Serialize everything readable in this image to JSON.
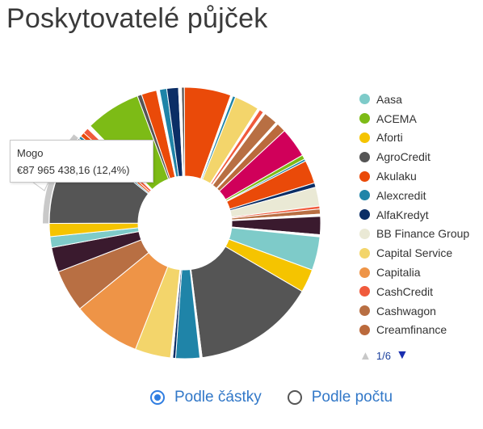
{
  "page": {
    "title": "Poskytovatelé půjček"
  },
  "tooltip": {
    "name": "Mogo",
    "value_text": "€87 965 438,16 (12,4%)"
  },
  "legend": {
    "items": [
      {
        "label": "Aasa",
        "color": "#7ecbc9"
      },
      {
        "label": "ACEMA",
        "color": "#7dbb16"
      },
      {
        "label": "Aforti",
        "color": "#f5c400"
      },
      {
        "label": "AgroCredit",
        "color": "#555555"
      },
      {
        "label": "Akulaku",
        "color": "#ea4a09"
      },
      {
        "label": "Alexcredit",
        "color": "#1f84a8"
      },
      {
        "label": "AlfaKredyt",
        "color": "#0b2e66"
      },
      {
        "label": "BB Finance Group",
        "color": "#eae9d5"
      },
      {
        "label": "Capital Service",
        "color": "#f3d56b"
      },
      {
        "label": "Capitalia",
        "color": "#ee9447"
      },
      {
        "label": "CashCredit",
        "color": "#f05a3c"
      },
      {
        "label": "Cashwagon",
        "color": "#b86f43"
      },
      {
        "label": "Creamfinance",
        "color": "#bb6a3c"
      }
    ],
    "page_indicator": "1/6",
    "prev_icon": "triangle-up-icon",
    "next_icon": "triangle-down-icon"
  },
  "controls": {
    "options": [
      {
        "label": "Podle částky",
        "checked": true
      },
      {
        "label": "Podle počtu",
        "checked": false
      }
    ]
  },
  "chart_data": {
    "type": "pie",
    "variant": "donut",
    "title": "Poskytovatelé půjček",
    "highlighted": {
      "label": "Mogo",
      "value": 87965438.16,
      "percent": 12.4
    },
    "slices": [
      {
        "color": "#555555",
        "value": 0.4
      },
      {
        "color": "#ea4a09",
        "value": 6.4
      },
      {
        "color": "#ffffff",
        "value": 0.3
      },
      {
        "color": "#1f84a8",
        "value": 0.4
      },
      {
        "color": "#f3d56b",
        "value": 3.4
      },
      {
        "color": "#ffffff",
        "value": 0.3
      },
      {
        "color": "#f05a3c",
        "value": 0.6
      },
      {
        "color": "#ffffff",
        "value": 0.3
      },
      {
        "color": "#b86f43",
        "value": 1.9
      },
      {
        "color": "#ffffff",
        "value": 0.3
      },
      {
        "color": "#bb6a3c",
        "value": 1.3
      },
      {
        "color": "#d0005a",
        "value": 4.1
      },
      {
        "color": "#7dbb16",
        "value": 0.6
      },
      {
        "color": "#1f84a8",
        "value": 0.3
      },
      {
        "color": "#ea4a09",
        "value": 3.2
      },
      {
        "color": "#0b2e66",
        "value": 0.6
      },
      {
        "color": "#eae9d5",
        "value": 2.6
      },
      {
        "color": "#f05a3c",
        "value": 0.4
      },
      {
        "color": "#b86f43",
        "value": 0.7
      },
      {
        "color": "#ffffff",
        "value": 0.3
      },
      {
        "color": "#3a1a2e",
        "value": 2.5
      },
      {
        "color": "#ffffff",
        "value": 0.3
      },
      {
        "color": "#7ecbc9",
        "value": 4.6
      },
      {
        "color": "#f5c400",
        "value": 3.2
      },
      {
        "color": "#555555",
        "value": 16.8
      },
      {
        "color": "#ffffff",
        "value": 0.3
      },
      {
        "color": "#1f84a8",
        "value": 3.3
      },
      {
        "color": "#0b2e66",
        "value": 0.4
      },
      {
        "color": "#ffffff",
        "value": 0.3
      },
      {
        "color": "#f3d56b",
        "value": 4.9
      },
      {
        "color": "#ee9447",
        "value": 9.4
      },
      {
        "color": "#b86f43",
        "value": 5.8
      },
      {
        "color": "#3a1a2e",
        "value": 3.4
      },
      {
        "color": "#7ecbc9",
        "value": 1.5
      },
      {
        "color": "#f5c400",
        "value": 1.8
      },
      {
        "color": "#555555",
        "value": 12.4
      },
      {
        "color": "#1f84a8",
        "value": 0.4
      },
      {
        "color": "#ea4a09",
        "value": 0.6
      },
      {
        "color": "#f05a3c",
        "value": 0.8
      },
      {
        "color": "#ffffff",
        "value": 0.5
      },
      {
        "color": "#7dbb16",
        "value": 7.6
      },
      {
        "color": "#555555",
        "value": 0.6
      },
      {
        "color": "#ea4a09",
        "value": 2.1
      },
      {
        "color": "#ffffff",
        "value": 0.4
      },
      {
        "color": "#1f84a8",
        "value": 1.0
      },
      {
        "color": "#0b2e66",
        "value": 1.6
      },
      {
        "color": "#ffffff",
        "value": 0.4
      }
    ]
  }
}
